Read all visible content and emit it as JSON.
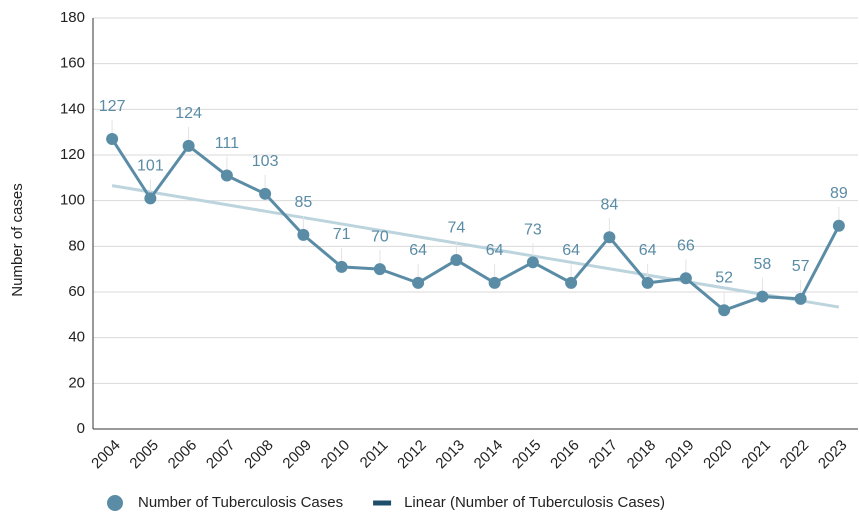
{
  "chart_data": {
    "type": "line",
    "y_label": "Number of cases",
    "categories": [
      "2004",
      "2005",
      "2006",
      "2007",
      "2008",
      "2009",
      "2010",
      "2011",
      "2012",
      "2013",
      "2014",
      "2015",
      "2016",
      "2017",
      "2018",
      "2019",
      "2020",
      "2021",
      "2022",
      "2023"
    ],
    "series": [
      {
        "name": "Number of Tuberculosis Cases",
        "color": "#5a8ca6",
        "values": [
          127,
          101,
          124,
          111,
          103,
          85,
          71,
          70,
          64,
          74,
          64,
          73,
          64,
          84,
          64,
          66,
          52,
          58,
          57,
          89
        ]
      },
      {
        "name": "Linear (Number of Tuberculosis Cases)",
        "color": "#bcd4dd",
        "legend_color": "#1f4e6b",
        "trendline": true,
        "values": [
          106.6,
          103.8,
          101.0,
          98.2,
          95.4,
          92.6,
          89.8,
          87.0,
          84.2,
          81.4,
          78.6,
          75.8,
          73.0,
          70.2,
          67.4,
          64.6,
          61.8,
          59.0,
          56.2,
          53.4
        ]
      }
    ],
    "ylim": [
      0,
      180
    ],
    "yticks": [
      0,
      20,
      40,
      60,
      80,
      100,
      120,
      140,
      160,
      180
    ],
    "grid": true,
    "data_labels": true,
    "legend": "bottom"
  }
}
